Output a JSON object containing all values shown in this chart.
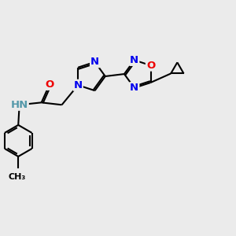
{
  "background_color": "#ebebeb",
  "atom_colors": {
    "C": "#000000",
    "N": "#0000ee",
    "O": "#ee0000",
    "H": "#5599aa"
  },
  "bond_color": "#000000",
  "bond_width": 1.5,
  "font_size_atom": 9.5,
  "font_size_methyl": 8.0
}
